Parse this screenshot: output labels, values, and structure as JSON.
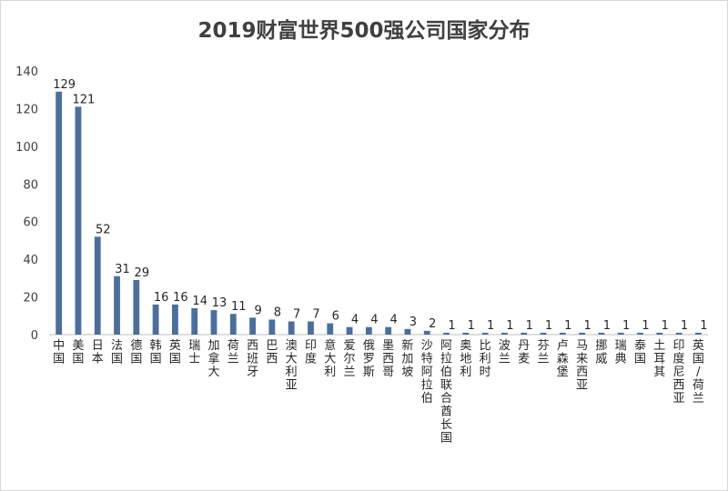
{
  "chart_data": {
    "type": "bar",
    "title": "2019财富世界500强公司国家分布",
    "xlabel": "",
    "ylabel": "",
    "ylim": [
      0,
      140
    ],
    "yticks": [
      0,
      20,
      40,
      60,
      80,
      100,
      120,
      140
    ],
    "grid": false,
    "legend": "none",
    "bar_color": "#4a6f9e",
    "categories": [
      "中国",
      "美国",
      "日本",
      "法国",
      "德国",
      "韩国",
      "英国",
      "瑞士",
      "加拿大",
      "荷兰",
      "西班牙",
      "巴西",
      "澳大利亚",
      "印度",
      "意大利",
      "爱尔兰",
      "俄罗斯",
      "墨西哥",
      "新加坡",
      "沙特阿拉伯",
      "阿拉伯联合酋长国",
      "奥地利",
      "比利时",
      "波兰",
      "丹麦",
      "芬兰",
      "卢森堡",
      "马来西亚",
      "挪威",
      "瑞典",
      "泰国",
      "土耳其",
      "印度尼西亚",
      "英国/荷兰"
    ],
    "values": [
      129,
      121,
      52,
      31,
      29,
      16,
      16,
      14,
      13,
      11,
      9,
      8,
      7,
      7,
      6,
      4,
      4,
      4,
      3,
      2,
      1,
      1,
      1,
      1,
      1,
      1,
      1,
      1,
      1,
      1,
      1,
      1,
      1,
      1
    ]
  }
}
